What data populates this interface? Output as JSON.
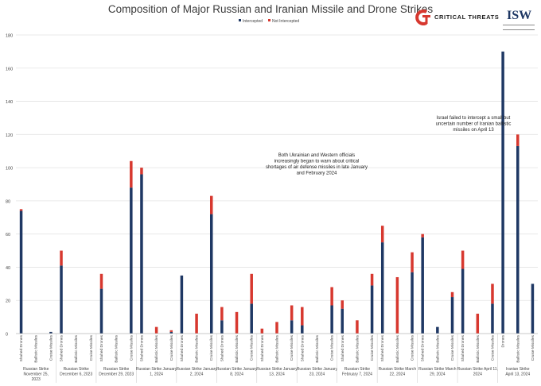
{
  "title": "Composition of Major Russian and Iranian Missile and Drone Strikes",
  "logos": {
    "ct_text": "CRITICAL THREATS",
    "isw_text": "ISW"
  },
  "colors": {
    "intercepted": "#1f3864",
    "not_intercepted": "#d7382f",
    "grid": "#e3e3e3",
    "text": "#444444"
  },
  "annotations": [
    {
      "lines": [
        "Both Ukrainian and Western officials",
        "increasingly began to warn about critical",
        "shortages of air defense missiles in late January",
        "and February 2024"
      ]
    },
    {
      "lines": [
        "Israel failed to intercept a small but",
        "uncertain number of Iranian ballistic",
        "missiles on April 13"
      ]
    }
  ],
  "chart_data": {
    "type": "bar",
    "stacked": true,
    "title": "Composition of Major Russian and Iranian Missile and Drone Strikes",
    "xlabel": "",
    "ylabel": "",
    "ylim": [
      0,
      180
    ],
    "yticks": [
      0,
      20,
      40,
      60,
      80,
      100,
      120,
      140,
      160,
      180
    ],
    "grid": true,
    "legend": "top-center",
    "series": [
      {
        "name": "Intercepted",
        "color": "#1f3864"
      },
      {
        "name": "Not Intercepted",
        "color": "#d7382f"
      }
    ],
    "groups": [
      {
        "label": [
          "Russian Strike",
          "November 25,",
          "2023"
        ],
        "bars": [
          {
            "category": "Shahed Drones",
            "intercepted": 74,
            "not_intercepted": 1
          },
          {
            "category": "Ballistic Missiles",
            "intercepted": 0,
            "not_intercepted": 0
          },
          {
            "category": "Cruise Missiles",
            "intercepted": 1,
            "not_intercepted": 0
          }
        ]
      },
      {
        "label": [
          "Russian Strike",
          "December 6, 2023"
        ],
        "bars": [
          {
            "category": "Shahed Drones",
            "intercepted": 41,
            "not_intercepted": 9
          },
          {
            "category": "Ballistic Missiles",
            "intercepted": 0,
            "not_intercepted": 0
          },
          {
            "category": "Cruise Missiles",
            "intercepted": 0,
            "not_intercepted": 0
          }
        ]
      },
      {
        "label": [
          "Russian Strike",
          "December 29, 2023"
        ],
        "bars": [
          {
            "category": "Shahed Drones",
            "intercepted": 27,
            "not_intercepted": 9
          },
          {
            "category": "Ballistic Missiles",
            "intercepted": 0,
            "not_intercepted": 0
          },
          {
            "category": "Cruise Missiles",
            "intercepted": 88,
            "not_intercepted": 16
          }
        ]
      },
      {
        "label": [
          "Russian Strike January",
          "1, 2024"
        ],
        "bars": [
          {
            "category": "Shahed Drones",
            "intercepted": 96,
            "not_intercepted": 4
          },
          {
            "category": "Ballistic Missiles",
            "intercepted": 0,
            "not_intercepted": 4
          },
          {
            "category": "Cruise Missiles",
            "intercepted": 1,
            "not_intercepted": 1
          }
        ]
      },
      {
        "label": [
          "Russian Strike January",
          "2, 2024"
        ],
        "bars": [
          {
            "category": "Shahed Drones",
            "intercepted": 35,
            "not_intercepted": 0
          },
          {
            "category": "Ballistic Missiles",
            "intercepted": 0,
            "not_intercepted": 12
          },
          {
            "category": "Cruise Missiles",
            "intercepted": 72,
            "not_intercepted": 11
          }
        ]
      },
      {
        "label": [
          "Russian Strike January",
          "8, 2024"
        ],
        "bars": [
          {
            "category": "Shahed Drones",
            "intercepted": 8,
            "not_intercepted": 8
          },
          {
            "category": "Ballistic Missiles",
            "intercepted": 0,
            "not_intercepted": 13
          },
          {
            "category": "Cruise Missiles",
            "intercepted": 18,
            "not_intercepted": 18
          }
        ]
      },
      {
        "label": [
          "Russian Strike January",
          "13, 2024"
        ],
        "bars": [
          {
            "category": "Shahed Drones",
            "intercepted": 0,
            "not_intercepted": 3
          },
          {
            "category": "Ballistic Missiles",
            "intercepted": 0,
            "not_intercepted": 7
          },
          {
            "category": "Cruise Missiles",
            "intercepted": 8,
            "not_intercepted": 9
          }
        ]
      },
      {
        "label": [
          "Russian Strike January",
          "23, 2024"
        ],
        "bars": [
          {
            "category": "Shahed Drones",
            "intercepted": 5,
            "not_intercepted": 11
          },
          {
            "category": "Ballistic Missiles",
            "intercepted": 0,
            "not_intercepted": 0
          },
          {
            "category": "Cruise Missiles",
            "intercepted": 17,
            "not_intercepted": 11
          }
        ]
      },
      {
        "label": [
          "Russian Strike",
          "February 7, 2024"
        ],
        "bars": [
          {
            "category": "Shahed Drones",
            "intercepted": 15,
            "not_intercepted": 5
          },
          {
            "category": "Ballistic Missiles",
            "intercepted": 0,
            "not_intercepted": 8
          },
          {
            "category": "Cruise Missiles",
            "intercepted": 29,
            "not_intercepted": 7
          }
        ]
      },
      {
        "label": [
          "Russian Strike March",
          "22, 2024"
        ],
        "bars": [
          {
            "category": "Shahed Drones",
            "intercepted": 55,
            "not_intercepted": 10
          },
          {
            "category": "Ballistic Missiles",
            "intercepted": 0,
            "not_intercepted": 34
          },
          {
            "category": "Cruise Missiles",
            "intercepted": 37,
            "not_intercepted": 12
          }
        ]
      },
      {
        "label": [
          "Russian Strike March",
          "29, 2024"
        ],
        "bars": [
          {
            "category": "Shahed Drones",
            "intercepted": 58,
            "not_intercepted": 2
          },
          {
            "category": "Ballistic Missiles",
            "intercepted": 4,
            "not_intercepted": 0
          },
          {
            "category": "Cruise Missiles",
            "intercepted": 22,
            "not_intercepted": 3
          }
        ]
      },
      {
        "label": [
          "Russian Strike April 11,",
          "2024"
        ],
        "bars": [
          {
            "category": "Shahed Drones",
            "intercepted": 39,
            "not_intercepted": 11
          },
          {
            "category": "Ballistic Missiles",
            "intercepted": 0,
            "not_intercepted": 12
          },
          {
            "category": "Cruise Missiles",
            "intercepted": 18,
            "not_intercepted": 12
          }
        ]
      },
      {
        "label": [
          "Iranian Strike",
          "April 13, 2024"
        ],
        "bars": [
          {
            "category": "Drones",
            "intercepted": 170,
            "not_intercepted": 0
          },
          {
            "category": "Ballistic Missiles",
            "intercepted": 113,
            "not_intercepted": 7
          },
          {
            "category": "Cruise Missiles",
            "intercepted": 30,
            "not_intercepted": 0
          }
        ]
      }
    ]
  }
}
